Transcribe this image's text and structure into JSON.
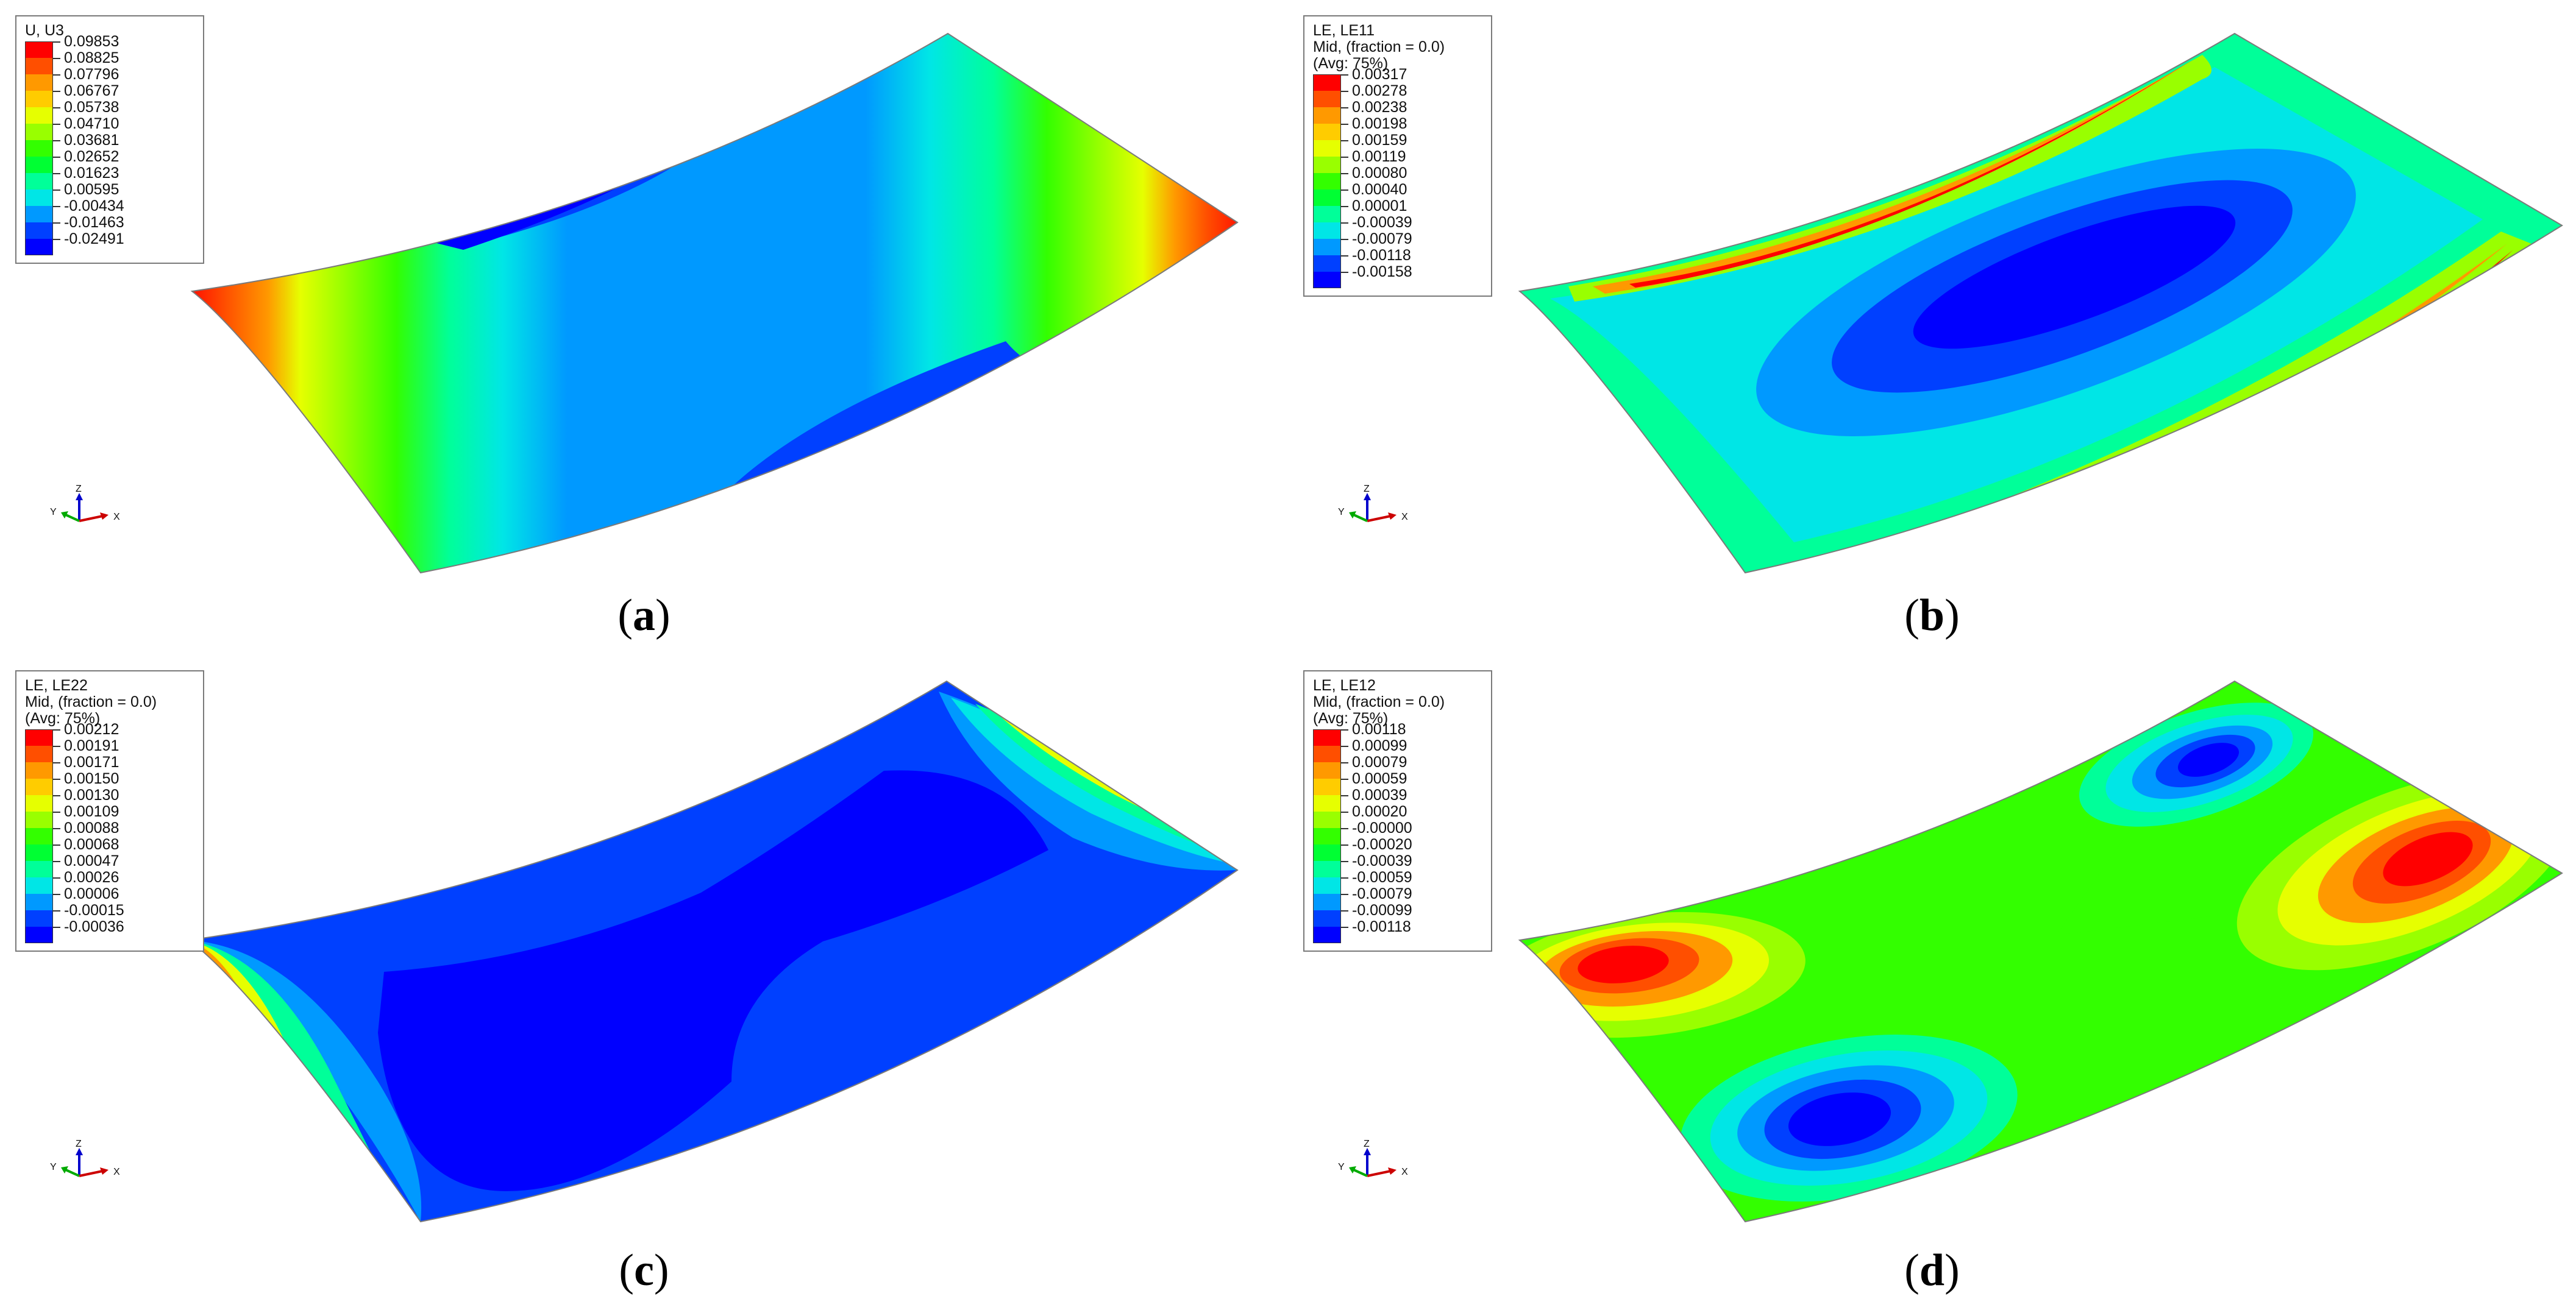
{
  "panels": [
    {
      "caption_letter": "a",
      "legend": {
        "lines": [
          "U, U3"
        ],
        "values": [
          "0.09853",
          "0.08825",
          "0.07796",
          "0.06767",
          "0.05738",
          "0.04710",
          "0.03681",
          "0.02652",
          "0.01623",
          "0.00595",
          "-0.00434",
          "-0.01463",
          "-0.02491"
        ]
      }
    },
    {
      "caption_letter": "b",
      "legend": {
        "lines": [
          "LE, LE11",
          "Mid, (fraction = 0.0)",
          "(Avg: 75%)"
        ],
        "values": [
          "0.00317",
          "0.00278",
          "0.00238",
          "0.00198",
          "0.00159",
          "0.00119",
          "0.00080",
          "0.00040",
          "0.00001",
          "-0.00039",
          "-0.00079",
          "-0.00118",
          "-0.00158"
        ]
      }
    },
    {
      "caption_letter": "c",
      "legend": {
        "lines": [
          "LE, LE22",
          "Mid, (fraction = 0.0)",
          "(Avg: 75%)"
        ],
        "values": [
          "0.00212",
          "0.00191",
          "0.00171",
          "0.00150",
          "0.00130",
          "0.00109",
          "0.00088",
          "0.00068",
          "0.00047",
          "0.00026",
          "0.00006",
          "-0.00015",
          "-0.00036"
        ]
      }
    },
    {
      "caption_letter": "d",
      "legend": {
        "lines": [
          "LE, LE12",
          "Mid, (fraction = 0.0)",
          "(Avg: 75%)"
        ],
        "values": [
          "0.00118",
          "0.00099",
          "0.00079",
          "0.00059",
          "0.00039",
          "0.00020",
          "-0.00000",
          "-0.00020",
          "-0.00039",
          "-0.00059",
          "-0.00079",
          "-0.00099",
          "-0.00118"
        ]
      }
    }
  ],
  "colorbar": [
    "#ff0000",
    "#ff4f00",
    "#ff9900",
    "#ffcc00",
    "#e6ff00",
    "#99ff00",
    "#33ff00",
    "#00ff33",
    "#00ff99",
    "#00e6e6",
    "#0099ff",
    "#0040ff",
    "#0000ff"
  ],
  "triad": {
    "x_label": "X",
    "y_label": "Y",
    "z_label": "Z"
  }
}
